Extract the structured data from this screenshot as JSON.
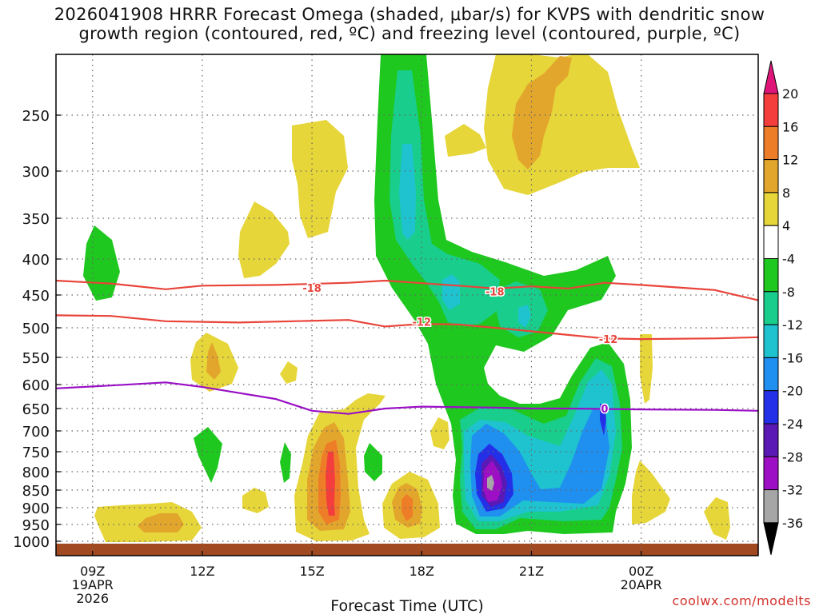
{
  "chart_data": {
    "type": "heatmap",
    "title_line1": "2026041908 HRRR Forecast Omega (shaded, μbar/s) for KVPS with dendritic snow",
    "title_line2": "growth region (contoured, red, ºC) and freezing level (contoured, purple, ºC)",
    "xlabel": "Forecast Time (UTC)",
    "x_ticks": [
      {
        "hour": 9,
        "label": "09Z",
        "sub1": "19APR",
        "sub2": "2026"
      },
      {
        "hour": 12,
        "label": "12Z"
      },
      {
        "hour": 15,
        "label": "15Z"
      },
      {
        "hour": 18,
        "label": "18Z"
      },
      {
        "hour": 21,
        "label": "21Z"
      },
      {
        "hour": 24,
        "label": "00Z",
        "sub1": "20APR"
      }
    ],
    "x_range_hours": [
      8.0,
      27.2
    ],
    "y_range_hpa": [
      200,
      1025
    ],
    "y_ticks": [
      250,
      300,
      350,
      400,
      450,
      500,
      550,
      600,
      650,
      700,
      750,
      800,
      850,
      900,
      950,
      1000
    ],
    "colorbar": {
      "labels": [
        20,
        16,
        12,
        8,
        4,
        -4,
        -8,
        -12,
        -16,
        -20,
        -24,
        -28,
        -32,
        -36
      ],
      "bins": [
        {
          "range": ">20",
          "color": "#e0157a"
        },
        {
          "range": "16-20",
          "color": "#f43d3d"
        },
        {
          "range": "12-16",
          "color": "#ee7d28"
        },
        {
          "range": "8-12",
          "color": "#e3a62c"
        },
        {
          "range": "4-8",
          "color": "#e6d63a"
        },
        {
          "range": "-4-4",
          "color": "#ffffff"
        },
        {
          "range": "-8--4",
          "color": "#1fc81f"
        },
        {
          "range": "-12--8",
          "color": "#19cd8c"
        },
        {
          "range": "-16--12",
          "color": "#1ec3cf"
        },
        {
          "range": "-20--16",
          "color": "#1f8ff0"
        },
        {
          "range": "-24--20",
          "color": "#2330e8"
        },
        {
          "range": "-28--24",
          "color": "#5a19b4"
        },
        {
          "range": "-32--28",
          "color": "#9c0fc4"
        },
        {
          "range": "-36--32",
          "color": "#a6a6a6"
        },
        {
          "range": "<-36",
          "color": "#000000"
        }
      ]
    },
    "contours": [
      {
        "name": "dgz-top-minus18",
        "color": "#e8443a",
        "label": "-18",
        "points": [
          [
            8.0,
            430
          ],
          [
            9.5,
            434
          ],
          [
            11,
            442
          ],
          [
            12,
            437
          ],
          [
            14,
            436
          ],
          [
            16,
            433
          ],
          [
            17,
            430
          ],
          [
            19,
            437
          ],
          [
            20,
            441
          ],
          [
            21,
            438
          ],
          [
            22,
            441
          ],
          [
            23,
            433
          ],
          [
            24,
            436
          ],
          [
            26,
            443
          ],
          [
            27.2,
            458
          ]
        ],
        "label_positions": [
          [
            15.0,
            440
          ],
          [
            20.0,
            445
          ]
        ]
      },
      {
        "name": "dgz-bottom-minus12",
        "color": "#e8443a",
        "label": "-12",
        "points": [
          [
            8.0,
            481
          ],
          [
            9.5,
            482
          ],
          [
            11,
            490
          ],
          [
            13,
            492
          ],
          [
            16,
            488
          ],
          [
            17,
            498
          ],
          [
            18,
            494
          ],
          [
            19,
            495
          ],
          [
            20,
            500
          ],
          [
            21,
            506
          ],
          [
            22,
            512
          ],
          [
            23,
            518
          ],
          [
            24,
            519
          ],
          [
            26,
            518
          ],
          [
            27.2,
            516
          ]
        ],
        "label_positions": [
          [
            18.0,
            491
          ],
          [
            23.1,
            519
          ]
        ]
      },
      {
        "name": "freezing-level-0",
        "color": "#9a10c6",
        "label": "0",
        "points": [
          [
            8.0,
            608
          ],
          [
            9.5,
            602
          ],
          [
            11,
            596
          ],
          [
            12,
            605
          ],
          [
            14,
            630
          ],
          [
            15,
            655
          ],
          [
            16,
            662
          ],
          [
            17,
            650
          ],
          [
            18,
            646
          ],
          [
            20,
            648
          ],
          [
            21,
            650
          ],
          [
            22,
            650
          ],
          [
            24,
            652
          ],
          [
            26,
            653
          ],
          [
            27.2,
            655
          ]
        ],
        "label_positions": [
          [
            23.0,
            650
          ]
        ]
      }
    ],
    "underground_from_hpa": 1008,
    "underground_color": "#a14a22"
  },
  "credit": "coolwx.com/modelts"
}
